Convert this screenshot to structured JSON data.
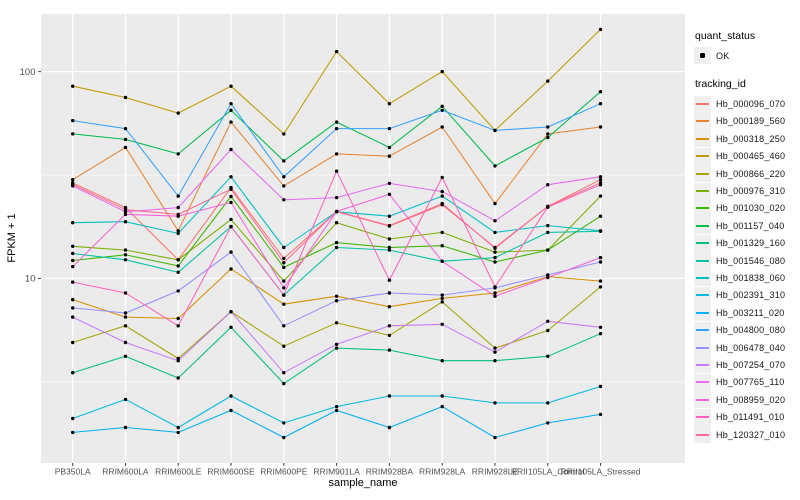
{
  "figure": {
    "panel_background": "#EBEBEB",
    "grid_color": "#FFFFFF",
    "tick_color": "#333333",
    "tick_label_color": "#4D4D4D",
    "point_color": "#000000"
  },
  "legend": {
    "quant_status_title": "quant_status",
    "quant_status_items": [
      "OK"
    ],
    "tracking_id_title": "tracking_id"
  },
  "chart_data": {
    "type": "line",
    "title": "",
    "xlabel": "sample_name",
    "ylabel": "FPKM + 1",
    "y_scale": "log10",
    "ylim": [
      1.28,
      190
    ],
    "y_major_ticks": [
      {
        "value": 10,
        "label": "10"
      },
      {
        "value": 100,
        "label": "100"
      }
    ],
    "y_minor_ticks": [
      3.162,
      31.62
    ],
    "grid": true,
    "legend_position": "right",
    "categories": [
      "PB350LA",
      "RRIM600LA",
      "RRIM600LE",
      "RRIM600SE",
      "RRIM600PE",
      "RRIM901LA",
      "RRIM928BA",
      "RRIM928LA",
      "RRIM928LE",
      "RRII105LA_Control",
      "RRII105LA_Stressed"
    ],
    "series": [
      {
        "name": "Hb_000096_070",
        "color": "#F8766D",
        "values": [
          29,
          22,
          12.3,
          27.5,
          12.5,
          21,
          17.9,
          22.7,
          14.1,
          22.3,
          30
        ]
      },
      {
        "name": "Hb_000189_560",
        "color": "#EA8331",
        "values": [
          30,
          43,
          17,
          57,
          28,
          40,
          39,
          54,
          23,
          50,
          54
        ]
      },
      {
        "name": "Hb_000318_250",
        "color": "#D89000",
        "values": [
          7.9,
          6.5,
          6.4,
          11.1,
          7.5,
          8.2,
          7.3,
          8,
          8.5,
          10.2,
          9.7
        ]
      },
      {
        "name": "Hb_000465_460",
        "color": "#C09B00",
        "values": [
          85,
          75,
          63,
          85,
          50,
          125,
          70,
          100,
          52,
          90,
          160
        ]
      },
      {
        "name": "Hb_000866_220",
        "color": "#A3A500",
        "values": [
          4.9,
          5.9,
          4.1,
          6.9,
          4.7,
          6.1,
          5.3,
          7.7,
          4.6,
          5.6,
          9.1
        ]
      },
      {
        "name": "Hb_000976_310",
        "color": "#7CAE00",
        "values": [
          14.3,
          13.7,
          12.3,
          19.3,
          9.7,
          18.6,
          15.5,
          16.7,
          13.4,
          13.7,
          25
        ]
      },
      {
        "name": "Hb_001030_020",
        "color": "#39B600",
        "values": [
          12.2,
          13,
          11.5,
          24.9,
          11.3,
          14.9,
          14.1,
          14.4,
          12,
          13.7,
          20
        ]
      },
      {
        "name": "Hb_001157_040",
        "color": "#00BB4E",
        "values": [
          50,
          47,
          40,
          65,
          37,
          57,
          43,
          68,
          35,
          48,
          80
        ]
      },
      {
        "name": "Hb_001329_160",
        "color": "#00BF7D",
        "values": [
          3.5,
          4.2,
          3.3,
          5.8,
          3.1,
          4.6,
          4.5,
          4,
          4,
          4.2,
          5.4
        ]
      },
      {
        "name": "Hb_001546_080",
        "color": "#00C1A3",
        "values": [
          13.2,
          12.3,
          10.7,
          17.8,
          8.3,
          14.1,
          13.7,
          12.1,
          12.6,
          16.7,
          16.9
        ]
      },
      {
        "name": "Hb_001838_060",
        "color": "#00BFC4",
        "values": [
          18.6,
          18.8,
          16.5,
          31,
          14.1,
          21,
          20,
          25,
          16.7,
          18,
          17
        ]
      },
      {
        "name": "Hb_002391_310",
        "color": "#00BAE0",
        "values": [
          2.1,
          2.6,
          1.9,
          2.7,
          2,
          2.4,
          2.7,
          2.7,
          2.5,
          2.5,
          3
        ]
      },
      {
        "name": "Hb_003211_020",
        "color": "#00B0F6",
        "values": [
          1.8,
          1.9,
          1.8,
          2.3,
          1.7,
          2.3,
          1.9,
          2.4,
          1.7,
          2,
          2.2
        ]
      },
      {
        "name": "Hb_004800_080",
        "color": "#35A2FF",
        "values": [
          58,
          53,
          25,
          70,
          31,
          53,
          53,
          65,
          52,
          54,
          70
        ]
      },
      {
        "name": "Hb_006478_040",
        "color": "#9590FF",
        "values": [
          7.2,
          6.8,
          8.7,
          13.4,
          5.9,
          7.8,
          8.5,
          8.3,
          9,
          10.4,
          12
        ]
      },
      {
        "name": "Hb_007254_070",
        "color": "#C77CFF",
        "values": [
          6.5,
          4.9,
          4,
          6.9,
          3.5,
          4.8,
          5.9,
          6,
          4.4,
          6.2,
          5.8
        ]
      },
      {
        "name": "Hb_007765_110",
        "color": "#E76BF3",
        "values": [
          28,
          21,
          22,
          42,
          24,
          24.6,
          28.8,
          26.3,
          19,
          28.4,
          31
        ]
      },
      {
        "name": "Hb_008959_020",
        "color": "#FA62DB",
        "values": [
          11.4,
          20.4,
          20,
          23.3,
          9,
          21.1,
          25.5,
          12.1,
          8.2,
          10.1,
          12.6
        ]
      },
      {
        "name": "Hb_011491_010",
        "color": "#FF62BC",
        "values": [
          9.6,
          8.5,
          5.9,
          17.8,
          8.3,
          33,
          9.8,
          30.8,
          9.1,
          22.1,
          28.4
        ]
      },
      {
        "name": "Hb_120327_010",
        "color": "#FF6A98",
        "values": [
          28.5,
          21.5,
          20.4,
          27,
          11.9,
          21.1,
          18,
          23,
          14,
          22.3,
          29
        ]
      }
    ]
  }
}
